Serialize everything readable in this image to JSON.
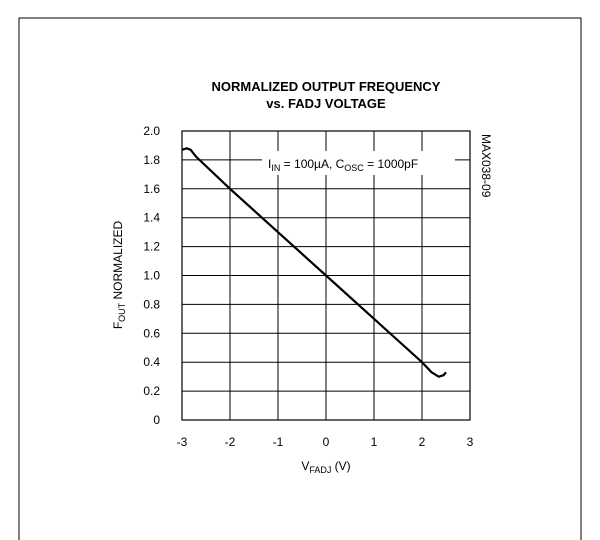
{
  "chart_data": {
    "type": "line",
    "title": [
      "NORMALIZED OUTPUT FREQUENCY",
      "vs. FADJ VOLTAGE"
    ],
    "annotation": [
      "I",
      "IN",
      " = 100µA, C",
      "OSC",
      " = 1000pF"
    ],
    "side_tag": "MAX038-09",
    "y_label": [
      "F",
      "OUT",
      " NORMALIZED"
    ],
    "x_label": [
      "V",
      "FADJ",
      " (V)"
    ],
    "xlim": [
      -3,
      3
    ],
    "xticks": [
      -3,
      -2,
      -1,
      0,
      1,
      2,
      3
    ],
    "ylim": [
      0,
      2
    ],
    "yticks": [
      0,
      0.2,
      0.4,
      0.6,
      0.8,
      {
        "value": 1,
        "label": "1.0"
      },
      1.2,
      1.4,
      1.6,
      1.8,
      {
        "value": 2,
        "label": "2.0"
      }
    ],
    "grid": true,
    "series": [
      {
        "color": "#000000",
        "x": [
          -3,
          -2.9,
          -2.82,
          -2.7,
          -2,
          -1,
          0,
          1,
          2,
          2.2,
          2.35,
          2.45,
          2.5
        ],
        "values": [
          1.87,
          1.88,
          1.87,
          1.82,
          1.6,
          1.3,
          1.0,
          0.7,
          0.4,
          0.33,
          0.3,
          0.31,
          0.33
        ]
      }
    ]
  }
}
